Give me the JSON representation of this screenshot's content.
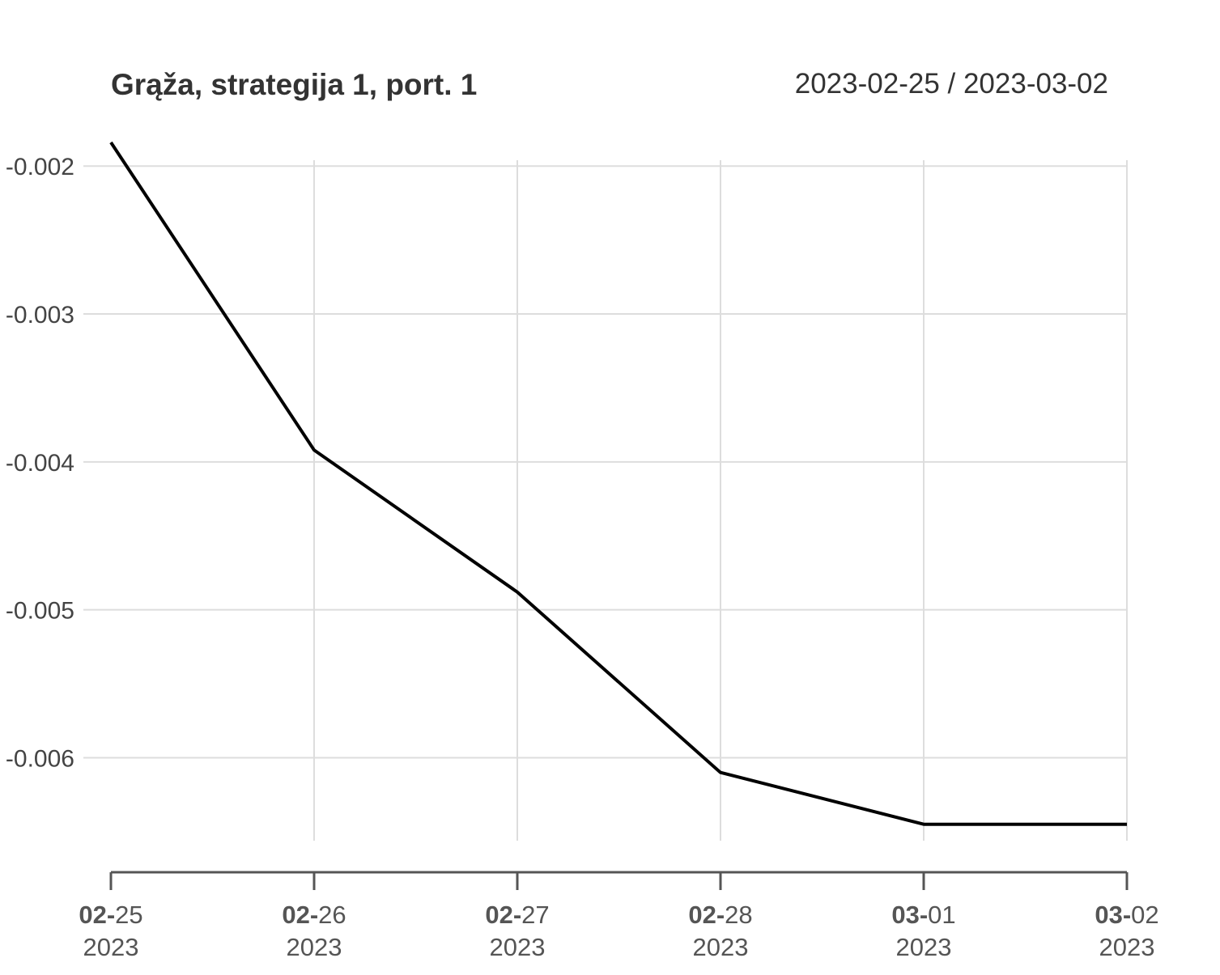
{
  "chart_data": {
    "type": "line",
    "title": "Grąža, strategija 1, port. 1",
    "period": "2023-02-25 / 2023-03-02",
    "xlabel": "",
    "ylabel": "",
    "x": [
      "2023-02-25",
      "2023-02-26",
      "2023-02-27",
      "2023-02-28",
      "2023-03-01",
      "2023-03-02"
    ],
    "x_tick_labels": [
      {
        "md_bold": "02-",
        "md_rest": "25",
        "year": "2023"
      },
      {
        "md_bold": "02-",
        "md_rest": "26",
        "year": "2023"
      },
      {
        "md_bold": "02-",
        "md_rest": "27",
        "year": "2023"
      },
      {
        "md_bold": "02-",
        "md_rest": "28",
        "year": "2023"
      },
      {
        "md_bold": "03-",
        "md_rest": "01",
        "year": "2023"
      },
      {
        "md_bold": "03-",
        "md_rest": "02",
        "year": "2023"
      }
    ],
    "series": [
      {
        "values": [
          -0.00184,
          -0.00392,
          -0.00488,
          -0.0061,
          -0.00645,
          -0.00645
        ],
        "color": "#000000"
      }
    ],
    "yticks": [
      -0.002,
      -0.003,
      -0.004,
      -0.005,
      -0.006
    ],
    "ytick_labels": [
      "-0.002",
      "-0.003",
      "-0.004",
      "-0.005",
      "-0.006"
    ],
    "ylim": [
      -0.00655,
      -0.00184
    ],
    "grid": true,
    "grid_color": "#dddddd",
    "axis_color": "#555555"
  }
}
